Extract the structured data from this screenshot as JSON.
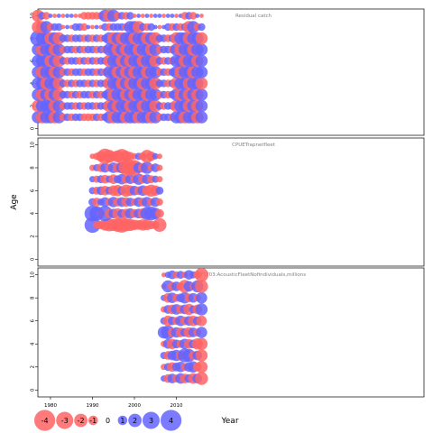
{
  "chart_data": [
    {
      "type": "scatter",
      "title": "Residual catch",
      "x_range": [
        1977,
        2069
      ],
      "ylim": [
        -0.6,
        10.6
      ],
      "y_ticks": [
        0,
        2,
        4,
        6,
        8,
        10
      ],
      "grid": false,
      "years": [
        1977,
        2016
      ],
      "ages": [
        1,
        10
      ],
      "sizes_by_age": {
        "10": [
          3,
          2,
          2,
          1,
          1,
          1,
          1,
          1,
          1,
          1,
          1,
          2,
          2,
          2,
          2,
          2,
          3,
          3,
          3,
          2,
          2,
          2,
          2,
          1,
          1,
          1,
          1,
          1,
          1,
          1,
          1,
          1,
          1,
          1,
          1,
          2,
          2,
          2,
          1,
          1
        ],
        "9": [
          3,
          3,
          3,
          2,
          2,
          2,
          1,
          1,
          1,
          2,
          2,
          2,
          1,
          1,
          1,
          1,
          2,
          2,
          2,
          2,
          2,
          2,
          3,
          3,
          3,
          2,
          2,
          2,
          1,
          1,
          1,
          2,
          2,
          2,
          2,
          2,
          3,
          3,
          2,
          2
        ],
        "8": [
          4,
          3,
          3,
          3,
          3,
          3,
          2,
          2,
          2,
          2,
          2,
          2,
          2,
          2,
          2,
          2,
          2,
          3,
          3,
          3,
          3,
          3,
          3,
          3,
          3,
          3,
          3,
          3,
          3,
          2,
          2,
          2,
          2,
          3,
          3,
          3,
          3,
          3,
          3,
          3
        ],
        "7": [
          3,
          3,
          3,
          3,
          3,
          3,
          2,
          2,
          2,
          2,
          2,
          2,
          2,
          2,
          2,
          2,
          2,
          3,
          3,
          3,
          3,
          3,
          3,
          3,
          3,
          3,
          3,
          3,
          3,
          2,
          2,
          2,
          2,
          3,
          3,
          3,
          3,
          3,
          3,
          3
        ],
        "6": [
          3,
          3,
          3,
          3,
          3,
          3,
          2,
          2,
          2,
          2,
          2,
          2,
          2,
          2,
          2,
          2,
          2,
          3,
          3,
          3,
          3,
          3,
          3,
          3,
          3,
          3,
          3,
          3,
          3,
          2,
          2,
          2,
          2,
          3,
          3,
          3,
          3,
          3,
          3,
          3
        ],
        "5": [
          3,
          3,
          3,
          3,
          3,
          3,
          2,
          2,
          2,
          2,
          2,
          2,
          2,
          2,
          2,
          2,
          2,
          3,
          3,
          3,
          3,
          3,
          3,
          3,
          3,
          3,
          3,
          3,
          3,
          2,
          2,
          2,
          2,
          3,
          3,
          3,
          3,
          3,
          3,
          3
        ],
        "4": [
          3,
          3,
          3,
          3,
          3,
          3,
          2,
          2,
          2,
          2,
          2,
          2,
          2,
          2,
          2,
          2,
          2,
          3,
          3,
          3,
          3,
          3,
          3,
          3,
          3,
          3,
          3,
          3,
          3,
          2,
          2,
          2,
          2,
          3,
          3,
          3,
          3,
          3,
          3,
          3
        ],
        "3": [
          3,
          3,
          3,
          3,
          3,
          3,
          2,
          2,
          2,
          2,
          2,
          2,
          2,
          2,
          2,
          2,
          2,
          3,
          3,
          3,
          3,
          3,
          3,
          3,
          3,
          3,
          3,
          3,
          3,
          2,
          2,
          2,
          2,
          3,
          3,
          3,
          3,
          3,
          3,
          3
        ],
        "2": [
          3,
          3,
          3,
          3,
          3,
          3,
          2,
          2,
          2,
          2,
          2,
          2,
          2,
          2,
          2,
          2,
          2,
          3,
          3,
          3,
          3,
          3,
          3,
          3,
          3,
          3,
          3,
          3,
          3,
          2,
          2,
          2,
          2,
          3,
          3,
          3,
          3,
          3,
          3,
          3
        ],
        "1": [
          3,
          3,
          3,
          3,
          3,
          3,
          2,
          2,
          2,
          2,
          2,
          2,
          2,
          2,
          2,
          2,
          2,
          3,
          3,
          3,
          3,
          3,
          3,
          3,
          3,
          3,
          3,
          3,
          3,
          2,
          2,
          2,
          2,
          3,
          3,
          3,
          3,
          3,
          3,
          3
        ]
      },
      "residuals_by_age": {
        "10": [
          -0.5,
          0.5,
          -0.3,
          0.4,
          -0.4,
          0.6,
          -0.2,
          0.3,
          0.5,
          -0.6,
          -0.8,
          -1.5,
          -1.8,
          -2.0,
          -1.2,
          -0.9,
          0.7,
          -0.5,
          0.6,
          -0.4,
          0.3,
          -0.5,
          0.8,
          -0.6,
          0.5,
          -0.3,
          0.4,
          -0.5,
          0.6,
          0.7,
          -0.4,
          0.8,
          1.5,
          -0.6,
          0.9,
          -0.5,
          1.1,
          -0.7,
          0.6,
          -0.4
        ],
        "9": [
          -0.6,
          -1.5,
          1.2,
          -0.8,
          1.0,
          0.9,
          -0.5,
          1.1,
          -0.7,
          0.6,
          0.8,
          -0.9,
          1.3,
          -1.2,
          0.7,
          -0.6,
          1.4,
          -1.3,
          1.2,
          1.4,
          1.3,
          -0.8,
          1.5,
          1.3,
          -0.9,
          1.2,
          -0.7,
          1.4,
          1.1,
          -0.8,
          0.9,
          1.0,
          -1.2,
          1.1,
          -0.9,
          0.8,
          -1.0,
          1.2,
          -0.7,
          1.0
        ],
        "8": [
          2.0,
          1.5,
          1.3,
          -1.0,
          1.2,
          -0.9,
          1.0,
          1.1,
          -0.7,
          0.8,
          0.9,
          -1.1,
          1.2,
          -0.8,
          1.0,
          -0.9,
          1.3,
          1.4,
          -1.2,
          1.5,
          -1.0,
          1.2,
          1.4,
          -1.1,
          1.3,
          1.5,
          -0.9,
          1.7,
          -1.3,
          1.4,
          1.2,
          -1.0,
          1.6,
          -1.2,
          1.8,
          1.0,
          -0.8,
          1.1,
          1.2,
          -0.9
        ],
        "7": [
          1.8,
          -1.2,
          1.4,
          1.3,
          -0.9,
          1.1,
          -1.0,
          0.9,
          1.2,
          -0.7,
          1.0,
          -0.8,
          1.2,
          1.1,
          -0.9,
          1.3,
          -1.1,
          1.5,
          1.2,
          -1.0,
          1.4,
          -1.2,
          1.6,
          1.3,
          -1.4,
          1.5,
          1.2,
          -1.1,
          1.4,
          -1.0,
          1.3,
          1.2,
          -1.1,
          1.4,
          -1.5,
          1.3,
          1.1,
          -1.2,
          1.4,
          1.0
        ],
        "6": [
          1.6,
          1.2,
          1.8,
          -1.4,
          1.2,
          -1.0,
          1.1,
          -0.8,
          1.0,
          1.2,
          -0.9,
          1.1,
          -0.8,
          1.0,
          -1.2,
          1.3,
          1.0,
          -1.1,
          1.3,
          1.0,
          -1.2,
          1.5,
          -1.0,
          1.4,
          1.2,
          -1.3,
          1.5,
          1.2,
          -1.4,
          1.1,
          -1.0,
          1.3,
          -1.5,
          1.2,
          1.4,
          -1.1,
          1.3,
          1.5,
          -1.0,
          1.2
        ],
        "5": [
          1.5,
          -1.1,
          1.4,
          1.2,
          -1.6,
          1.1,
          -0.9,
          1.0,
          -0.8,
          1.1,
          1.0,
          -0.9,
          1.2,
          1.1,
          -1.0,
          1.3,
          -1.2,
          1.1,
          1.3,
          -1.1,
          1.4,
          -1.2,
          1.5,
          -1.3,
          1.2,
          1.4,
          -1.2,
          1.3,
          1.5,
          -1.1,
          1.2,
          -1.3,
          1.4,
          1.1,
          -1.8,
          1.2,
          1.3,
          -1.1,
          1.4,
          1.2
        ],
        "4": [
          1.4,
          1.2,
          -1.0,
          1.3,
          1.1,
          -1.2,
          1.0,
          -0.9,
          1.1,
          -0.8,
          1.0,
          1.1,
          -1.0,
          1.2,
          -0.9,
          1.1,
          1.3,
          -1.2,
          1.1,
          1.4,
          -1.2,
          1.3,
          -1.4,
          1.2,
          1.5,
          -1.3,
          1.4,
          1.2,
          -1.5,
          1.3,
          1.1,
          -1.2,
          1.4,
          -1.3,
          1.2,
          1.5,
          -1.1,
          1.3,
          1.2,
          -1.0
        ],
        "3": [
          1.2,
          -2.2,
          1.8,
          -1.2,
          1.1,
          -1.0,
          0.9,
          1.1,
          -0.8,
          1.0,
          -0.9,
          1.1,
          1.0,
          -1.1,
          1.2,
          -1.0,
          1.1,
          1.3,
          -1.2,
          1.1,
          1.4,
          -1.3,
          1.2,
          -1.5,
          1.4,
          1.2,
          -1.3,
          1.1,
          1.5,
          -1.4,
          1.2,
          -1.6,
          1.3,
          1.1,
          -1.2,
          1.4,
          -1.0,
          1.2,
          -1.3,
          1.1
        ],
        "2": [
          -1.0,
          1.4,
          2.0,
          1.8,
          -1.3,
          1.1,
          -1.0,
          1.2,
          1.0,
          -0.9,
          1.1,
          -1.0,
          1.2,
          1.1,
          -1.2,
          1.0,
          1.3,
          -1.1,
          1.2,
          -1.4,
          1.3,
          1.1,
          -1.2,
          1.4,
          1.2,
          -1.3,
          1.1,
          1.5,
          -1.2,
          1.0,
          -1.4,
          1.2,
          1.3,
          -1.1,
          1.4,
          1.0,
          -1.3,
          1.2,
          -1.0,
          1.1
        ],
        "1": [
          1.6,
          -2.4,
          1.4,
          1.6,
          -1.0,
          1.2,
          -1.1,
          1.0,
          -0.9,
          1.2,
          1.1,
          -1.0,
          -1.4,
          -1.3,
          1.6,
          -1.8,
          1.2,
          1.4,
          -1.6,
          1.3,
          1.5,
          -1.1,
          1.4,
          1.2,
          -1.3,
          1.5,
          1.1,
          -1.2,
          1.6,
          -1.3,
          1.4,
          1.3,
          -1.6,
          1.2,
          1.4,
          -1.2,
          1.5,
          1.3,
          -1.1,
          1.4
        ]
      }
    },
    {
      "type": "scatter",
      "title": "CPUETrapnetfleet",
      "x_range": [
        1977,
        2069
      ],
      "ylim": [
        -0.6,
        10.6
      ],
      "y_ticks": [
        0,
        2,
        4,
        6,
        8,
        10
      ],
      "grid": false,
      "years": [
        1990,
        2006
      ],
      "ages": [
        3,
        9
      ],
      "residuals_by_age": {
        "9": [
          -0.4,
          -0.6,
          -1.0,
          -1.6,
          -1.3,
          -0.9,
          -1.2,
          -1.5,
          -1.1,
          -0.8,
          -0.5,
          0.6,
          -0.7,
          -1.3,
          -0.9,
          0.5,
          -0.4
        ],
        "8": [
          -0.5,
          0.6,
          -0.8,
          0.9,
          -0.7,
          1.0,
          -0.9,
          1.1,
          -1.5,
          -1.8,
          -1.6,
          1.0,
          -0.9,
          1.2,
          -0.6,
          0.8,
          -0.5
        ],
        "7": [
          0.5,
          -0.6,
          0.7,
          -0.8,
          0.6,
          -0.9,
          0.7,
          1.0,
          -0.8,
          0.9,
          -0.7,
          1.1,
          -0.8,
          0.9,
          -0.7,
          0.6,
          -0.5
        ],
        "6": [
          0.6,
          -0.7,
          0.8,
          -0.9,
          0.7,
          -1.0,
          -1.1,
          0.8,
          -1.2,
          -1.0,
          0.9,
          -0.8,
          1.0,
          -0.9,
          -1.2,
          -1.0,
          0.7
        ],
        "5": [
          0.7,
          -0.8,
          0.6,
          0.9,
          -0.7,
          1.0,
          -0.8,
          0.9,
          -0.9,
          0.8,
          -0.6,
          0.9,
          -0.8,
          1.0,
          -0.7,
          0.9,
          -0.6
        ],
        "4": [
          1.8,
          1.5,
          -0.7,
          1.6,
          -0.8,
          0.9,
          -1.0,
          0.8,
          -0.9,
          1.0,
          -0.8,
          0.9,
          -1.0,
          1.3,
          1.4,
          1.1,
          -0.8
        ],
        "3": [
          2.1,
          -0.6,
          -0.8,
          -1.1,
          -1.3,
          -1.2,
          -1.4,
          -1.6,
          -1.3,
          -1.2,
          -1.0,
          -0.9,
          -1.1,
          -1.0,
          -0.8,
          -0.7,
          -1.4
        ]
      }
    },
    {
      "type": "scatter",
      "title": "FLT03:AcousticFleetNofindividuals,millions",
      "x_range": [
        1977,
        2069
      ],
      "ylim": [
        -0.6,
        10.6
      ],
      "y_ticks": [
        0,
        2,
        4,
        6,
        8,
        10
      ],
      "grid": false,
      "years": [
        2007,
        2016
      ],
      "ages": [
        1,
        10
      ],
      "residuals_by_age": {
        "10": [
          -0.3,
          0.5,
          0.8,
          -0.6,
          0.7,
          -0.5,
          0.9,
          0.6,
          -0.7,
          -1.4
        ],
        "9": [
          -0.4,
          1.2,
          -0.8,
          0.9,
          -0.7,
          -1.3,
          1.0,
          -0.6,
          1.2,
          -1.3
        ],
        "8": [
          0.5,
          -0.9,
          1.0,
          -0.7,
          0.8,
          1.1,
          -0.8,
          0.9,
          -0.6,
          1.1
        ],
        "7": [
          -0.5,
          0.8,
          -0.9,
          1.0,
          -0.8,
          0.9,
          -1.1,
          0.7,
          -0.9,
          1.2
        ],
        "6": [
          0.6,
          -1.0,
          0.8,
          -0.7,
          1.0,
          -0.8,
          0.9,
          -1.0,
          0.8,
          -1.0
        ],
        "5": [
          1.2,
          1.4,
          -0.8,
          1.0,
          -0.9,
          0.8,
          -1.0,
          0.9,
          -0.7,
          1.1
        ],
        "4": [
          -0.5,
          0.9,
          -1.0,
          0.8,
          -0.7,
          1.0,
          -0.9,
          0.8,
          -1.1,
          -1.2
        ],
        "3": [
          0.6,
          -0.8,
          0.9,
          1.1,
          -0.9,
          1.4,
          1.3,
          -0.8,
          0.9,
          -1.2
        ],
        "2": [
          -0.5,
          0.7,
          -0.9,
          0.8,
          1.0,
          -0.7,
          0.9,
          1.1,
          -0.8,
          -1.2
        ],
        "1": [
          0.5,
          -0.8,
          0.9,
          -0.7,
          1.0,
          -0.9,
          0.8,
          -1.0,
          0.9,
          -1.3
        ]
      }
    }
  ],
  "axes": {
    "ylabel": "Age",
    "xlabel": "Year",
    "x_ticks": [
      1980,
      1990,
      2000,
      2010
    ]
  },
  "legend": {
    "values": [
      -4,
      -3,
      -2,
      -1,
      0,
      1,
      2,
      3,
      4
    ],
    "labels": [
      "-4",
      "-3",
      "-2",
      "-1",
      "0",
      "1",
      "2",
      "3",
      "4"
    ]
  },
  "colors": {
    "negative": "#ff6464",
    "positive": "#6464ff",
    "frame": "#000000",
    "title": "#808080"
  }
}
